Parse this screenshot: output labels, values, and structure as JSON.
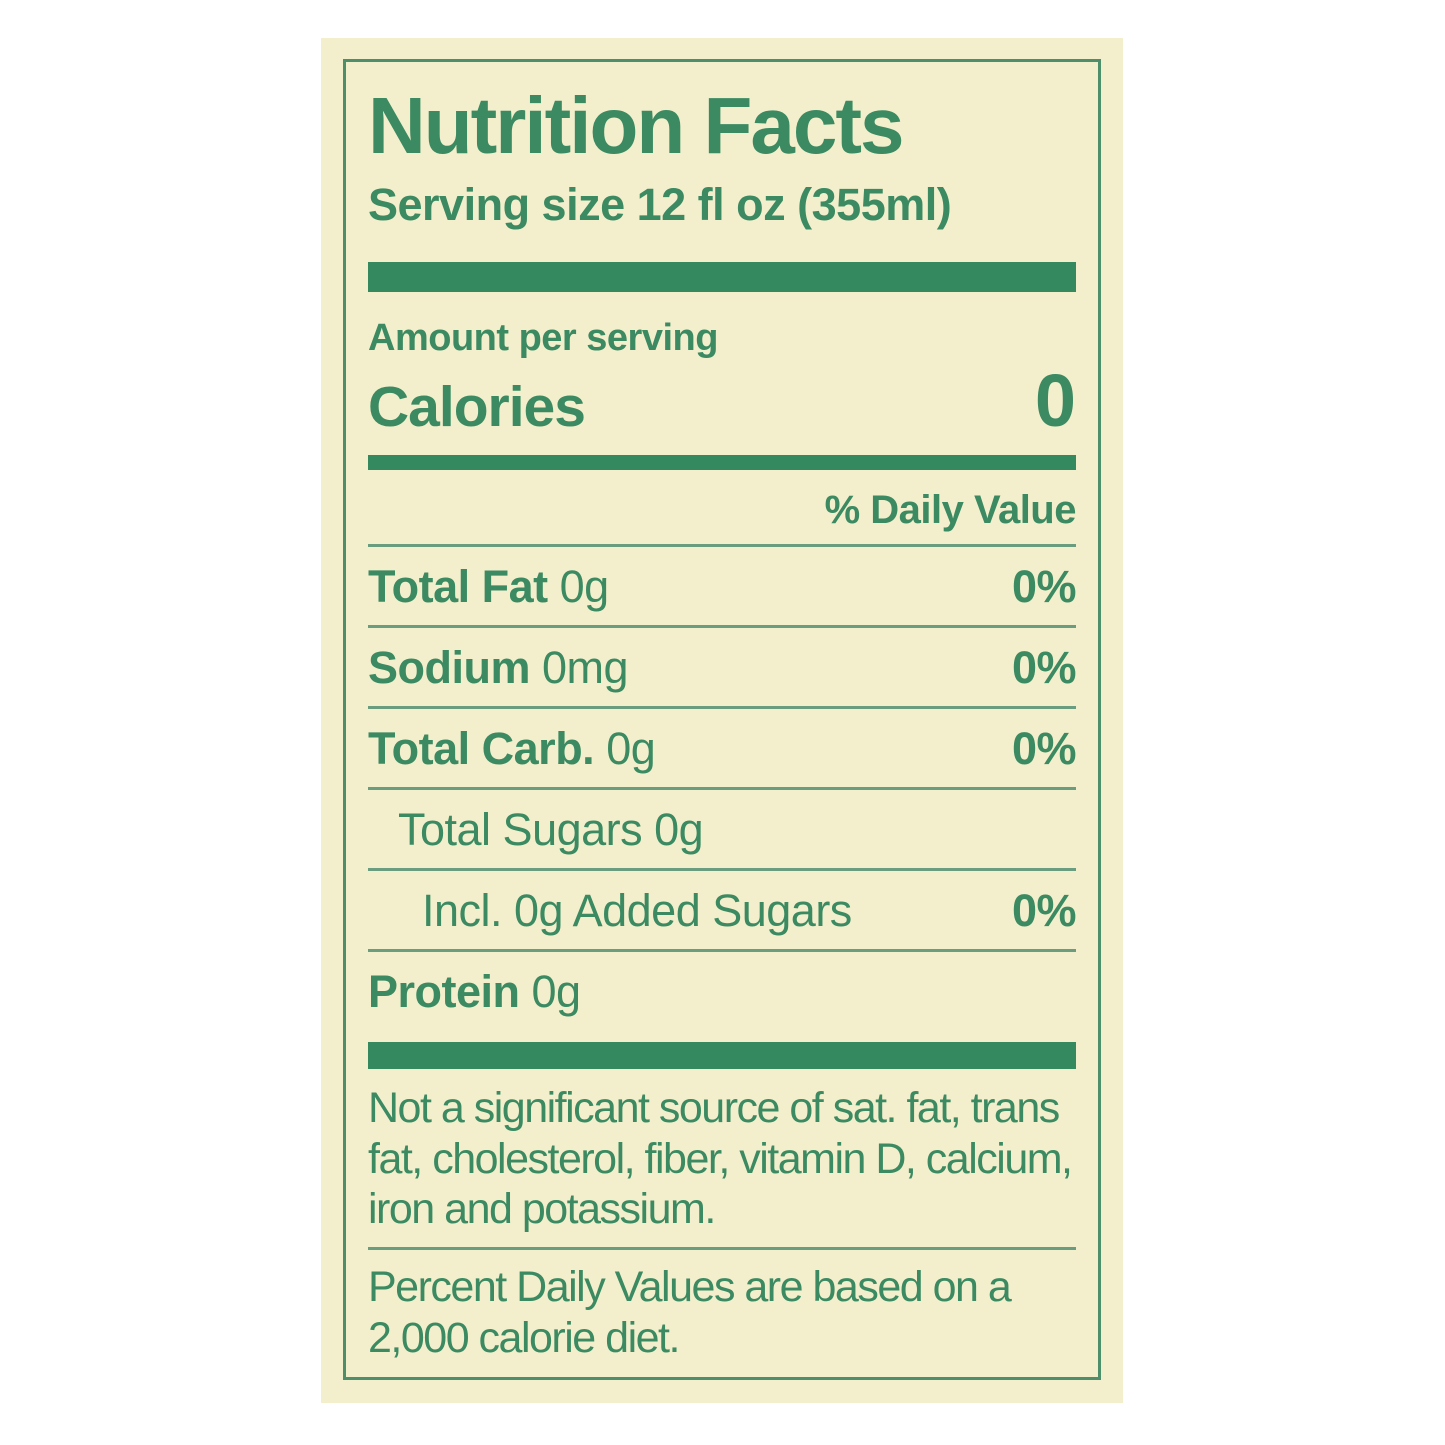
{
  "label": {
    "title": "Nutrition Facts",
    "serving_size": "Serving size 12 fl oz (355ml)",
    "amount_per_serving": "Amount per serving",
    "calories_label": "Calories",
    "calories_value": "0",
    "daily_value_header": "% Daily Value",
    "rows": [
      {
        "name": "Total Fat",
        "amount": "0g",
        "daily_value": "0%"
      },
      {
        "name": "Sodium",
        "amount": "0mg",
        "daily_value": "0%"
      },
      {
        "name": "Total Carb.",
        "amount": "0g",
        "daily_value": "0%"
      },
      {
        "name": "Total Sugars",
        "amount": "0g",
        "daily_value": ""
      },
      {
        "name": "Incl. 0g Added Sugars",
        "amount": "",
        "daily_value": "0%"
      },
      {
        "name": "Protein",
        "amount": "0g",
        "daily_value": ""
      }
    ],
    "footnote_significance": "Not a significant source of sat. fat, trans fat, cholesterol, fiber, vitamin D, calcium, iron and potassium.",
    "footnote_daily_values": "Percent Daily Values are based on a 2,000 calorie diet.",
    "colors": {
      "text_green": "#3b8a62",
      "bar_green": "#35895e",
      "hairline_green": "#6a9c80",
      "border_green": "#4d8f6b",
      "panel_cream": "#f3efcc",
      "page_background": "#ffffff"
    }
  }
}
